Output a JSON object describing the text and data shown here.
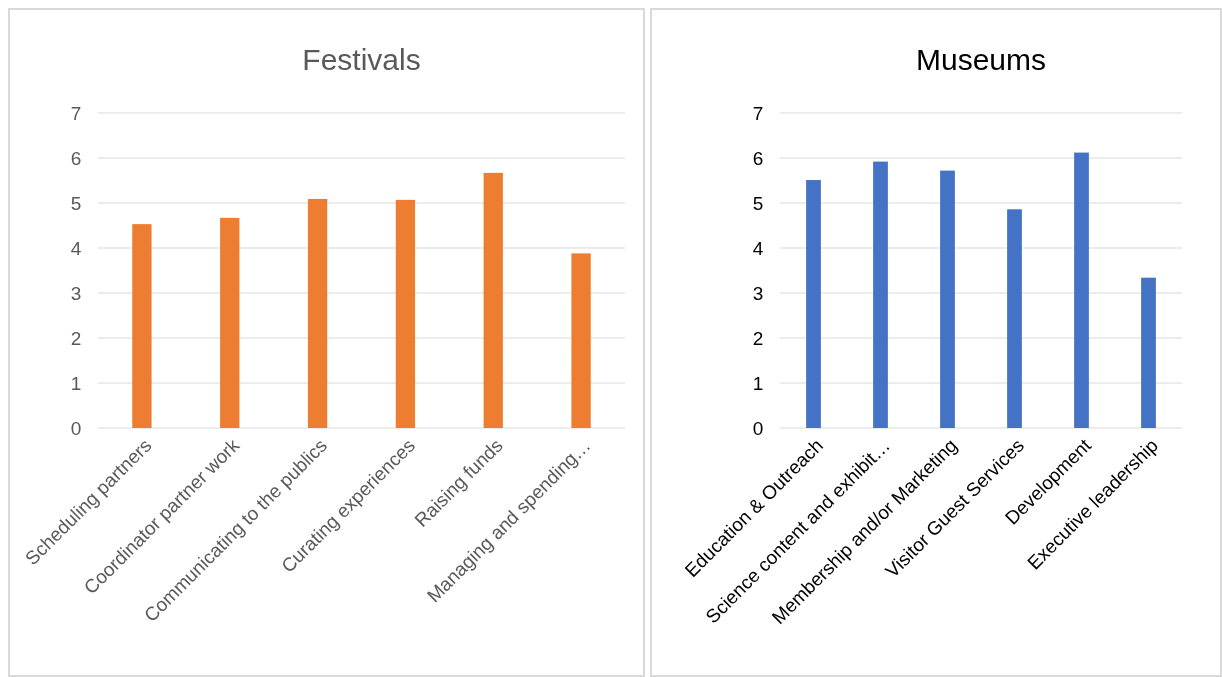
{
  "chart_data": [
    {
      "type": "bar",
      "title": "Festivals",
      "categories": [
        "Scheduling partners",
        "Coordinator partner work",
        "Communicating to the publics",
        "Curating experiences",
        "Raising funds",
        "Managing and spending…"
      ],
      "values": [
        4.53,
        4.67,
        5.09,
        5.07,
        5.67,
        3.88
      ],
      "color": "#ed7d31",
      "ylim": [
        0,
        7
      ],
      "yticks": [
        0,
        1,
        2,
        3,
        4,
        5,
        6,
        7
      ],
      "grid": "y"
    },
    {
      "type": "bar",
      "title": "Museums",
      "categories": [
        "Education & Outreach",
        "Science content and exhibit…",
        "Membership and/or Marketing",
        "Visitor Guest Services",
        "Development",
        "Executive leadership"
      ],
      "values": [
        5.51,
        5.92,
        5.72,
        4.86,
        6.12,
        3.34
      ],
      "color": "#4472c4",
      "ylim": [
        0,
        7
      ],
      "yticks": [
        0,
        1,
        2,
        3,
        4,
        5,
        6,
        7
      ],
      "grid": "y"
    }
  ]
}
